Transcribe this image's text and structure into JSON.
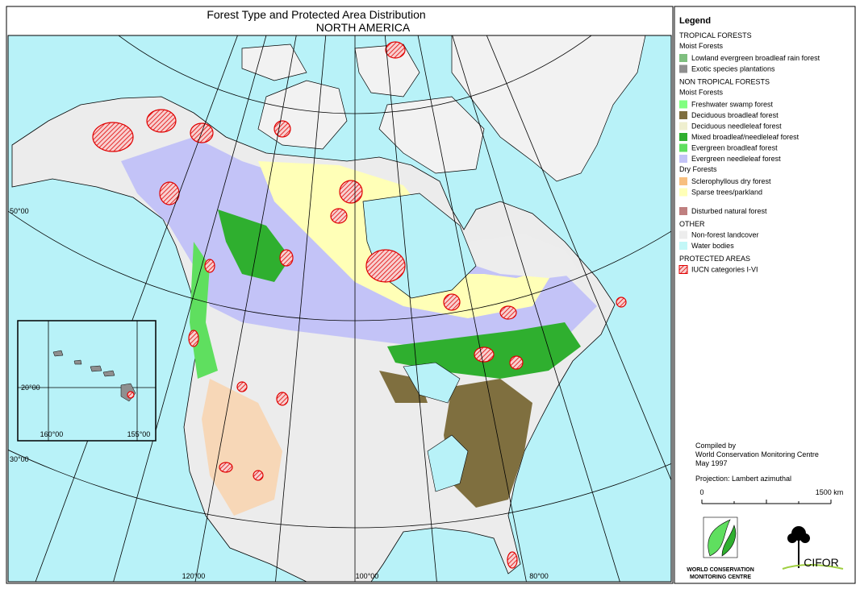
{
  "header": {
    "title": "Forest Type and Protected Area Distribution",
    "subtitle": "NORTH AMERICA"
  },
  "map_labels": {
    "latitudes": [
      "50°00",
      "30°00"
    ],
    "longitudes": [
      "120°00",
      "100°00",
      "80°00"
    ],
    "inset": {
      "latitude": "20°00",
      "longitudes": [
        "160°00",
        "155°00"
      ]
    }
  },
  "legend": {
    "title": "Legend",
    "sections": [
      {
        "heading": "TROPICAL FORESTS",
        "groups": [
          {
            "subheading": "Moist Forests",
            "items": [
              {
                "label": "Lowland evergreen broadleaf rain forest",
                "color": "#7fbf7f"
              },
              {
                "label": "Exotic species plantations",
                "color": "#8f8f8f"
              }
            ]
          }
        ]
      },
      {
        "heading": "NON TROPICAL FORESTS",
        "groups": [
          {
            "subheading": "Moist Forests",
            "items": [
              {
                "label": "Freshwater swamp forest",
                "color": "#80ff80"
              },
              {
                "label": "Deciduous broadleaf forest",
                "color": "#7f6f3f"
              },
              {
                "label": "Deciduous needleleaf forest",
                "color": "#efefcf"
              },
              {
                "label": "Mixed broadleaf/needleleaf forest",
                "color": "#2faf2f"
              },
              {
                "label": "Evergreen broadleaf forest",
                "color": "#5fdf5f"
              },
              {
                "label": "Evergreen needleleaf forest",
                "color": "#c3c3f7"
              }
            ]
          },
          {
            "subheading": "Dry Forests",
            "items": [
              {
                "label": "Sclerophyllous dry forest",
                "color": "#f7bf7f"
              },
              {
                "label": "Sparse trees/parkland",
                "color": "#ffffb7"
              }
            ]
          },
          {
            "items": [
              {
                "label": "Disturbed natural forest",
                "color": "#bf7f7f"
              }
            ]
          }
        ]
      },
      {
        "heading": "OTHER",
        "groups": [
          {
            "items": [
              {
                "label": "Non-forest landcover",
                "color": "#ededed"
              },
              {
                "label": "Water bodies",
                "color": "#c3f7f7"
              }
            ]
          }
        ]
      },
      {
        "heading": "PROTECTED AREAS",
        "groups": [
          {
            "items": [
              {
                "label": "IUCN categories I-VI",
                "color": "#e00000",
                "pattern": "hatch"
              }
            ]
          }
        ]
      }
    ]
  },
  "credits": {
    "lines": [
      "Compiled by",
      "World Conservation Monitoring Centre",
      "May 1997"
    ],
    "projection": "Projection: Lambert azimuthal"
  },
  "scale_bar": {
    "start": "0",
    "end": "1500 km"
  },
  "logos": {
    "wcmc": [
      "WORLD CONSERVATION",
      "MONITORING CENTRE"
    ],
    "cifor": "CIFOR"
  }
}
